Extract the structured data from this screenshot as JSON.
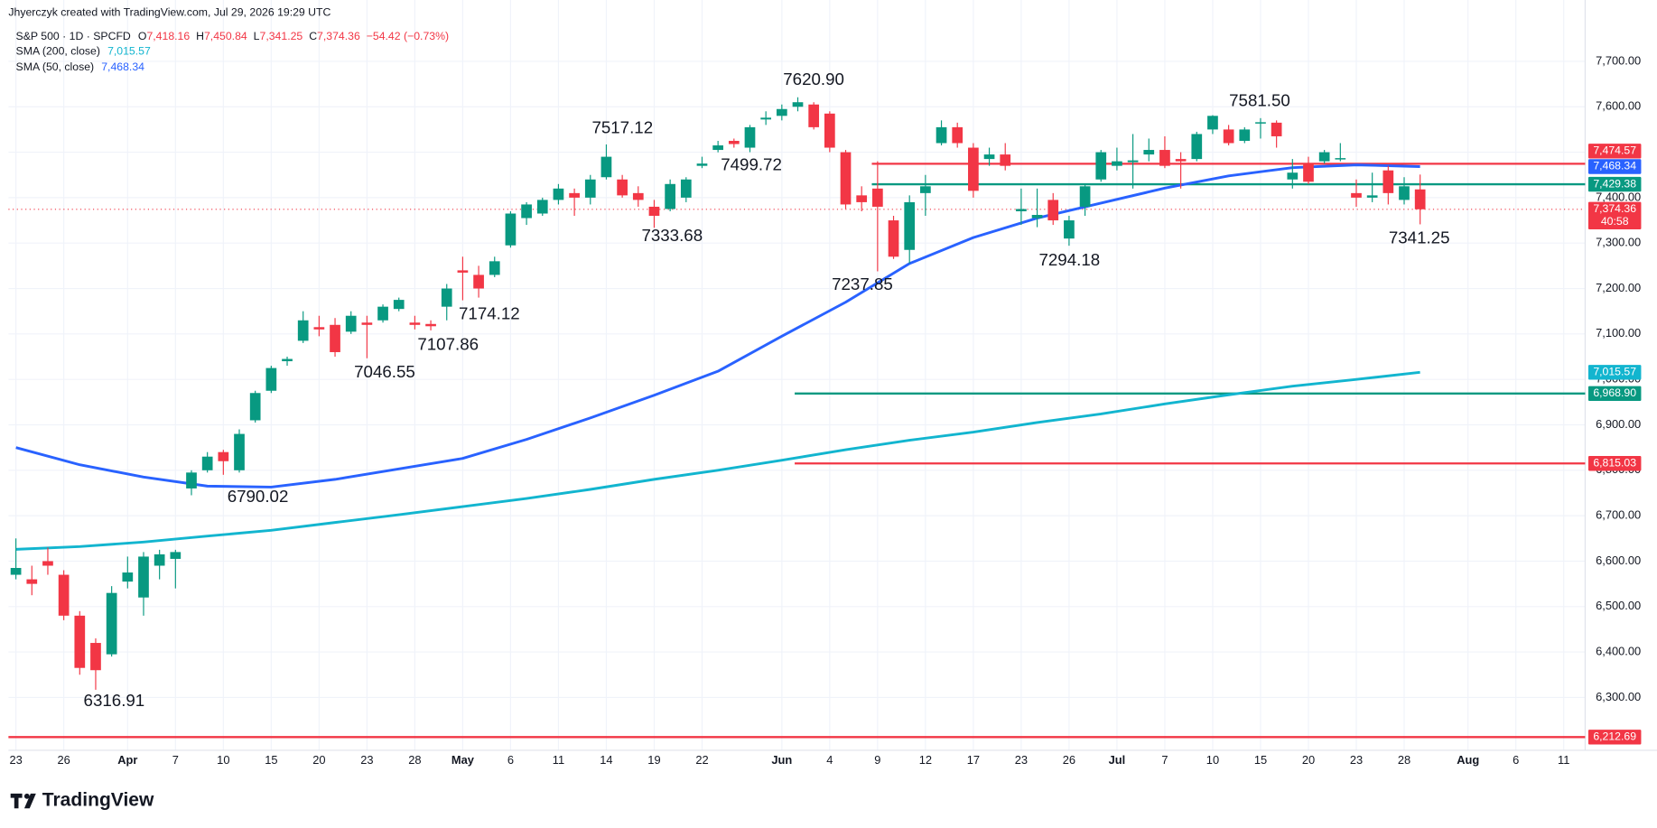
{
  "header": {
    "credit": "Jhyerczyk created with TradingView.com, Jul 29, 2026 19:29 UTC",
    "symbol": "S&P 500 · 1D · SPCFD",
    "ohlc": [
      {
        "key": "O",
        "value": "7,418.16"
      },
      {
        "key": "H",
        "value": "7,450.84"
      },
      {
        "key": "L",
        "value": "7,341.25"
      },
      {
        "key": "C",
        "value": "7,374.36"
      }
    ],
    "change": "−54.42 (−0.73%)"
  },
  "chart_data": {
    "type": "candlestick",
    "categories": [
      "23",
      null,
      null,
      "26",
      null,
      null,
      null,
      "Apr",
      null,
      null,
      "7",
      null,
      null,
      "10",
      null,
      null,
      "15",
      null,
      null,
      "20",
      null,
      null,
      "23",
      null,
      null,
      "28",
      null,
      null,
      "May",
      null,
      null,
      "6",
      null,
      null,
      "11",
      null,
      null,
      "14",
      null,
      null,
      "19",
      null,
      null,
      "22",
      null,
      null,
      null,
      null,
      "Jun",
      null,
      null,
      "4",
      null,
      null,
      "9",
      null,
      null,
      "12",
      null,
      null,
      "17",
      null,
      null,
      "23",
      null,
      null,
      "26",
      null,
      null,
      "Jul",
      null,
      null,
      "7",
      null,
      null,
      "10",
      null,
      null,
      "15",
      null,
      null,
      "20",
      null,
      null,
      "23",
      null,
      null,
      "28",
      null,
      null,
      null,
      "Aug",
      null,
      null,
      "6",
      null,
      null,
      "11",
      null,
      null
    ],
    "open": [
      6570,
      6560,
      6600,
      6570,
      6480,
      6420,
      6395,
      6555,
      6520,
      6590,
      6605,
      6760,
      6800,
      6840,
      6800,
      6910,
      6975,
      7040,
      7085,
      7115,
      7120,
      7105,
      7125,
      7130,
      7155,
      7125,
      7122,
      7160,
      7240,
      7230,
      7230,
      7295,
      7355,
      7365,
      7395,
      7410,
      7400,
      7445,
      7440,
      7410,
      7380,
      7375,
      7400,
      7470,
      7505,
      7525,
      7510,
      7572,
      7580,
      7600,
      7605,
      7585,
      7500,
      7405,
      7420,
      7350,
      7285,
      7410,
      7520,
      7555,
      7510,
      7485,
      7495,
      7370,
      7355,
      7395,
      7310,
      7380,
      7440,
      7470,
      7478,
      7495,
      7505,
      7485,
      7485,
      7550,
      7550,
      7525,
      7563,
      7565,
      7440,
      7475,
      7480,
      7484,
      7410,
      7400,
      7460,
      7395,
      7418.16,
      null,
      null,
      null,
      null,
      null,
      null,
      null,
      null,
      null,
      null,
      null
    ],
    "high": [
      6650,
      6590,
      6630,
      6580,
      6490,
      6430,
      6545,
      6610,
      6620,
      6625,
      6625,
      6800,
      6840,
      6845,
      6890,
      6975,
      7030,
      7050,
      7150,
      7140,
      7135,
      7150,
      7140,
      7165,
      7180,
      7140,
      7130,
      7210,
      7270,
      7250,
      7270,
      7370,
      7390,
      7400,
      7430,
      7420,
      7450,
      7517.12,
      7450,
      7425,
      7395,
      7440,
      7445,
      7490,
      7525,
      7530,
      7560,
      7590,
      7605,
      7620.9,
      7610,
      7590,
      7505,
      7425,
      7480,
      7360,
      7405,
      7450,
      7570,
      7565,
      7520,
      7510,
      7520,
      7420,
      7420,
      7410,
      7360,
      7430,
      7505,
      7510,
      7540,
      7530,
      7535,
      7500,
      7545,
      7581.5,
      7560,
      7555,
      7575,
      7570,
      7485,
      7490,
      7505,
      7520,
      7440,
      7455,
      7470,
      7445,
      7450.84,
      null,
      null,
      null,
      null,
      null,
      null,
      null,
      null,
      null,
      null,
      null
    ],
    "low": [
      6560,
      6525,
      6570,
      6470,
      6350,
      6316.91,
      6390,
      6540,
      6480,
      6560,
      6540,
      6745,
      6795,
      6790.02,
      6795,
      6905,
      6970,
      7030,
      7080,
      7095,
      7050,
      7100,
      7046.55,
      7125,
      7150,
      7110,
      7107.86,
      7130,
      7174.12,
      7180,
      7225,
      7290,
      7340,
      7360,
      7385,
      7360,
      7385,
      7440,
      7400,
      7380,
      7333.68,
      7370,
      7390,
      7465,
      7499.72,
      7510,
      7500,
      7560,
      7570,
      7590,
      7550,
      7500,
      7375,
      7370,
      7237.85,
      7265,
      7255,
      7360,
      7515,
      7510,
      7400,
      7470,
      7460,
      7340,
      7335,
      7340,
      7294.18,
      7360,
      7435,
      7460,
      7420,
      7480,
      7465,
      7420,
      7480,
      7540,
      7515,
      7520,
      7530,
      7510,
      7420,
      7430,
      7475,
      7480,
      7380,
      7390,
      7385,
      7385,
      7341.25,
      null,
      null,
      null,
      null,
      null,
      null,
      null,
      null,
      null,
      null,
      null
    ],
    "close": [
      6585,
      6550,
      6590,
      6480,
      6365,
      6360,
      6530,
      6575,
      6610,
      6615,
      6620,
      6795,
      6830,
      6820,
      6880,
      6970,
      7025,
      7045,
      7130,
      7110,
      7060,
      7140,
      7120,
      7160,
      7175,
      7120,
      7117,
      7200,
      7235,
      7200,
      7260,
      7365,
      7385,
      7395,
      7420,
      7400,
      7440,
      7490,
      7405,
      7395,
      7360,
      7430,
      7440,
      7475,
      7515,
      7518,
      7555,
      7576,
      7595,
      7610,
      7555,
      7510,
      7385,
      7390,
      7380,
      7270,
      7390,
      7425,
      7555,
      7520,
      7415,
      7495,
      7470,
      7375,
      7362,
      7350,
      7350,
      7425,
      7500,
      7480,
      7482,
      7505,
      7470,
      7480,
      7540,
      7580,
      7520,
      7550,
      7566,
      7535,
      7455,
      7435,
      7500,
      7487,
      7400,
      7405,
      7410,
      7425,
      7374.36,
      null,
      null,
      null,
      null,
      null,
      null,
      null,
      null,
      null,
      null,
      null
    ],
    "up_color": "#089981",
    "down_color": "#f23645",
    "ylim": [
      6183.7,
      7834.9
    ],
    "yticks": [
      {
        "value": 6300,
        "label": "6,300.00"
      },
      {
        "value": 6400,
        "label": "6,400.00"
      },
      {
        "value": 6500,
        "label": "6,500.00"
      },
      {
        "value": 6600,
        "label": "6,600.00"
      },
      {
        "value": 6700,
        "label": "6,700.00"
      },
      {
        "value": 6800,
        "label": "6,800.00"
      },
      {
        "value": 6900,
        "label": "6,900.00"
      },
      {
        "value": 7000,
        "label": "7,000.00"
      },
      {
        "value": 7100,
        "label": "7,100.00"
      },
      {
        "value": 7200,
        "label": "7,200.00"
      },
      {
        "value": 7300,
        "label": "7,300.00"
      },
      {
        "value": 7400,
        "label": "7,400.00"
      },
      {
        "value": 7500,
        "label": "7,500.00"
      },
      {
        "value": 7600,
        "label": "7,600.00"
      },
      {
        "value": 7700,
        "label": "7,700.00"
      }
    ],
    "grid": true,
    "series": [
      {
        "name": "SMA (200, close)",
        "color": "#12b5cf",
        "last_label": "7,015.57",
        "x": [
          0,
          4,
          8,
          12,
          16,
          20,
          24,
          28,
          32,
          36,
          40,
          44,
          48,
          52,
          56,
          60,
          64,
          68,
          72,
          76,
          80,
          84,
          88
        ],
        "values": [
          6626,
          6632,
          6642,
          6655,
          6668,
          6685,
          6702,
          6720,
          6738,
          6758,
          6780,
          6800,
          6822,
          6845,
          6866,
          6884,
          6905,
          6924,
          6946,
          6966,
          6985,
          7000,
          7015.57
        ]
      },
      {
        "name": "SMA (50, close)",
        "color": "#2962ff",
        "last_label": "7,468.34",
        "x": [
          0,
          4,
          8,
          12,
          16,
          20,
          24,
          28,
          32,
          36,
          40,
          44,
          48,
          52,
          56,
          60,
          64,
          68,
          72,
          76,
          80,
          84,
          88
        ],
        "values": [
          6850,
          6812,
          6785,
          6765,
          6763,
          6780,
          6803,
          6826,
          6868,
          6915,
          6965,
          7018,
          7095,
          7170,
          7255,
          7312,
          7355,
          7388,
          7421,
          7448,
          7466,
          7472,
          7468.34
        ]
      }
    ],
    "levels": [
      {
        "value": 7474.57,
        "label": "7,474.57",
        "color": "#f23645"
      },
      {
        "value": 7429.38,
        "label": "7,429.38",
        "color": "#089981"
      },
      {
        "value": 6968.9,
        "label": "6,968.90",
        "color": "#089981"
      },
      {
        "value": 6815.03,
        "label": "6,815.03",
        "color": "#f23645"
      },
      {
        "value": 6212.69,
        "label": "6,212.69",
        "color": "#f23645"
      }
    ],
    "last_price": {
      "value": 7374.36,
      "label": "7,374.36",
      "countdown": "40:58",
      "color": "#f23645"
    },
    "annotations": [
      "7620.90",
      "7517.12",
      "7499.72",
      "7333.68",
      "7237.85",
      "7294.18",
      "7581.50",
      "7341.25",
      "7174.12",
      "7107.86",
      "7046.55",
      "6790.02",
      "6316.91"
    ]
  },
  "footer": {
    "brand": "TradingView"
  }
}
